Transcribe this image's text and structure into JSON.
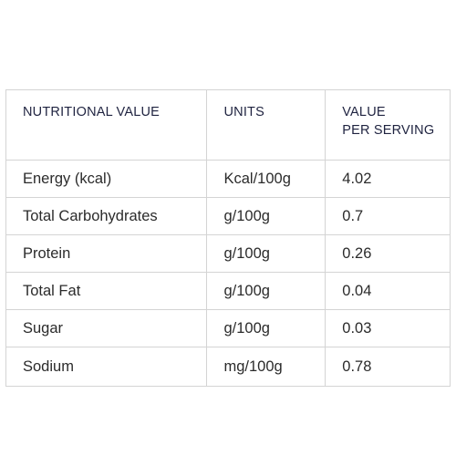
{
  "table": {
    "headers": {
      "col1": "NUTRITIONAL VALUE",
      "col2": "UNITS",
      "col3_line1": "VALUE",
      "col3_line2": "PER SERVING"
    },
    "rows": [
      {
        "name": "Energy (kcal)",
        "unit": "Kcal/100g",
        "value": "4.02"
      },
      {
        "name": "Total Carbohydrates",
        "unit": "g/100g",
        "value": "0.7"
      },
      {
        "name": "Protein",
        "unit": "g/100g",
        "value": "0.26"
      },
      {
        "name": "Total Fat",
        "unit": "g/100g",
        "value": "0.04"
      },
      {
        "name": "Sugar",
        "unit": "g/100g",
        "value": "0.03"
      },
      {
        "name": "Sodium",
        "unit": "mg/100g",
        "value": "0.78"
      }
    ]
  },
  "colors": {
    "header_text": "#1f2340",
    "body_text": "#2b2b2b",
    "border": "#d4d4d4"
  }
}
